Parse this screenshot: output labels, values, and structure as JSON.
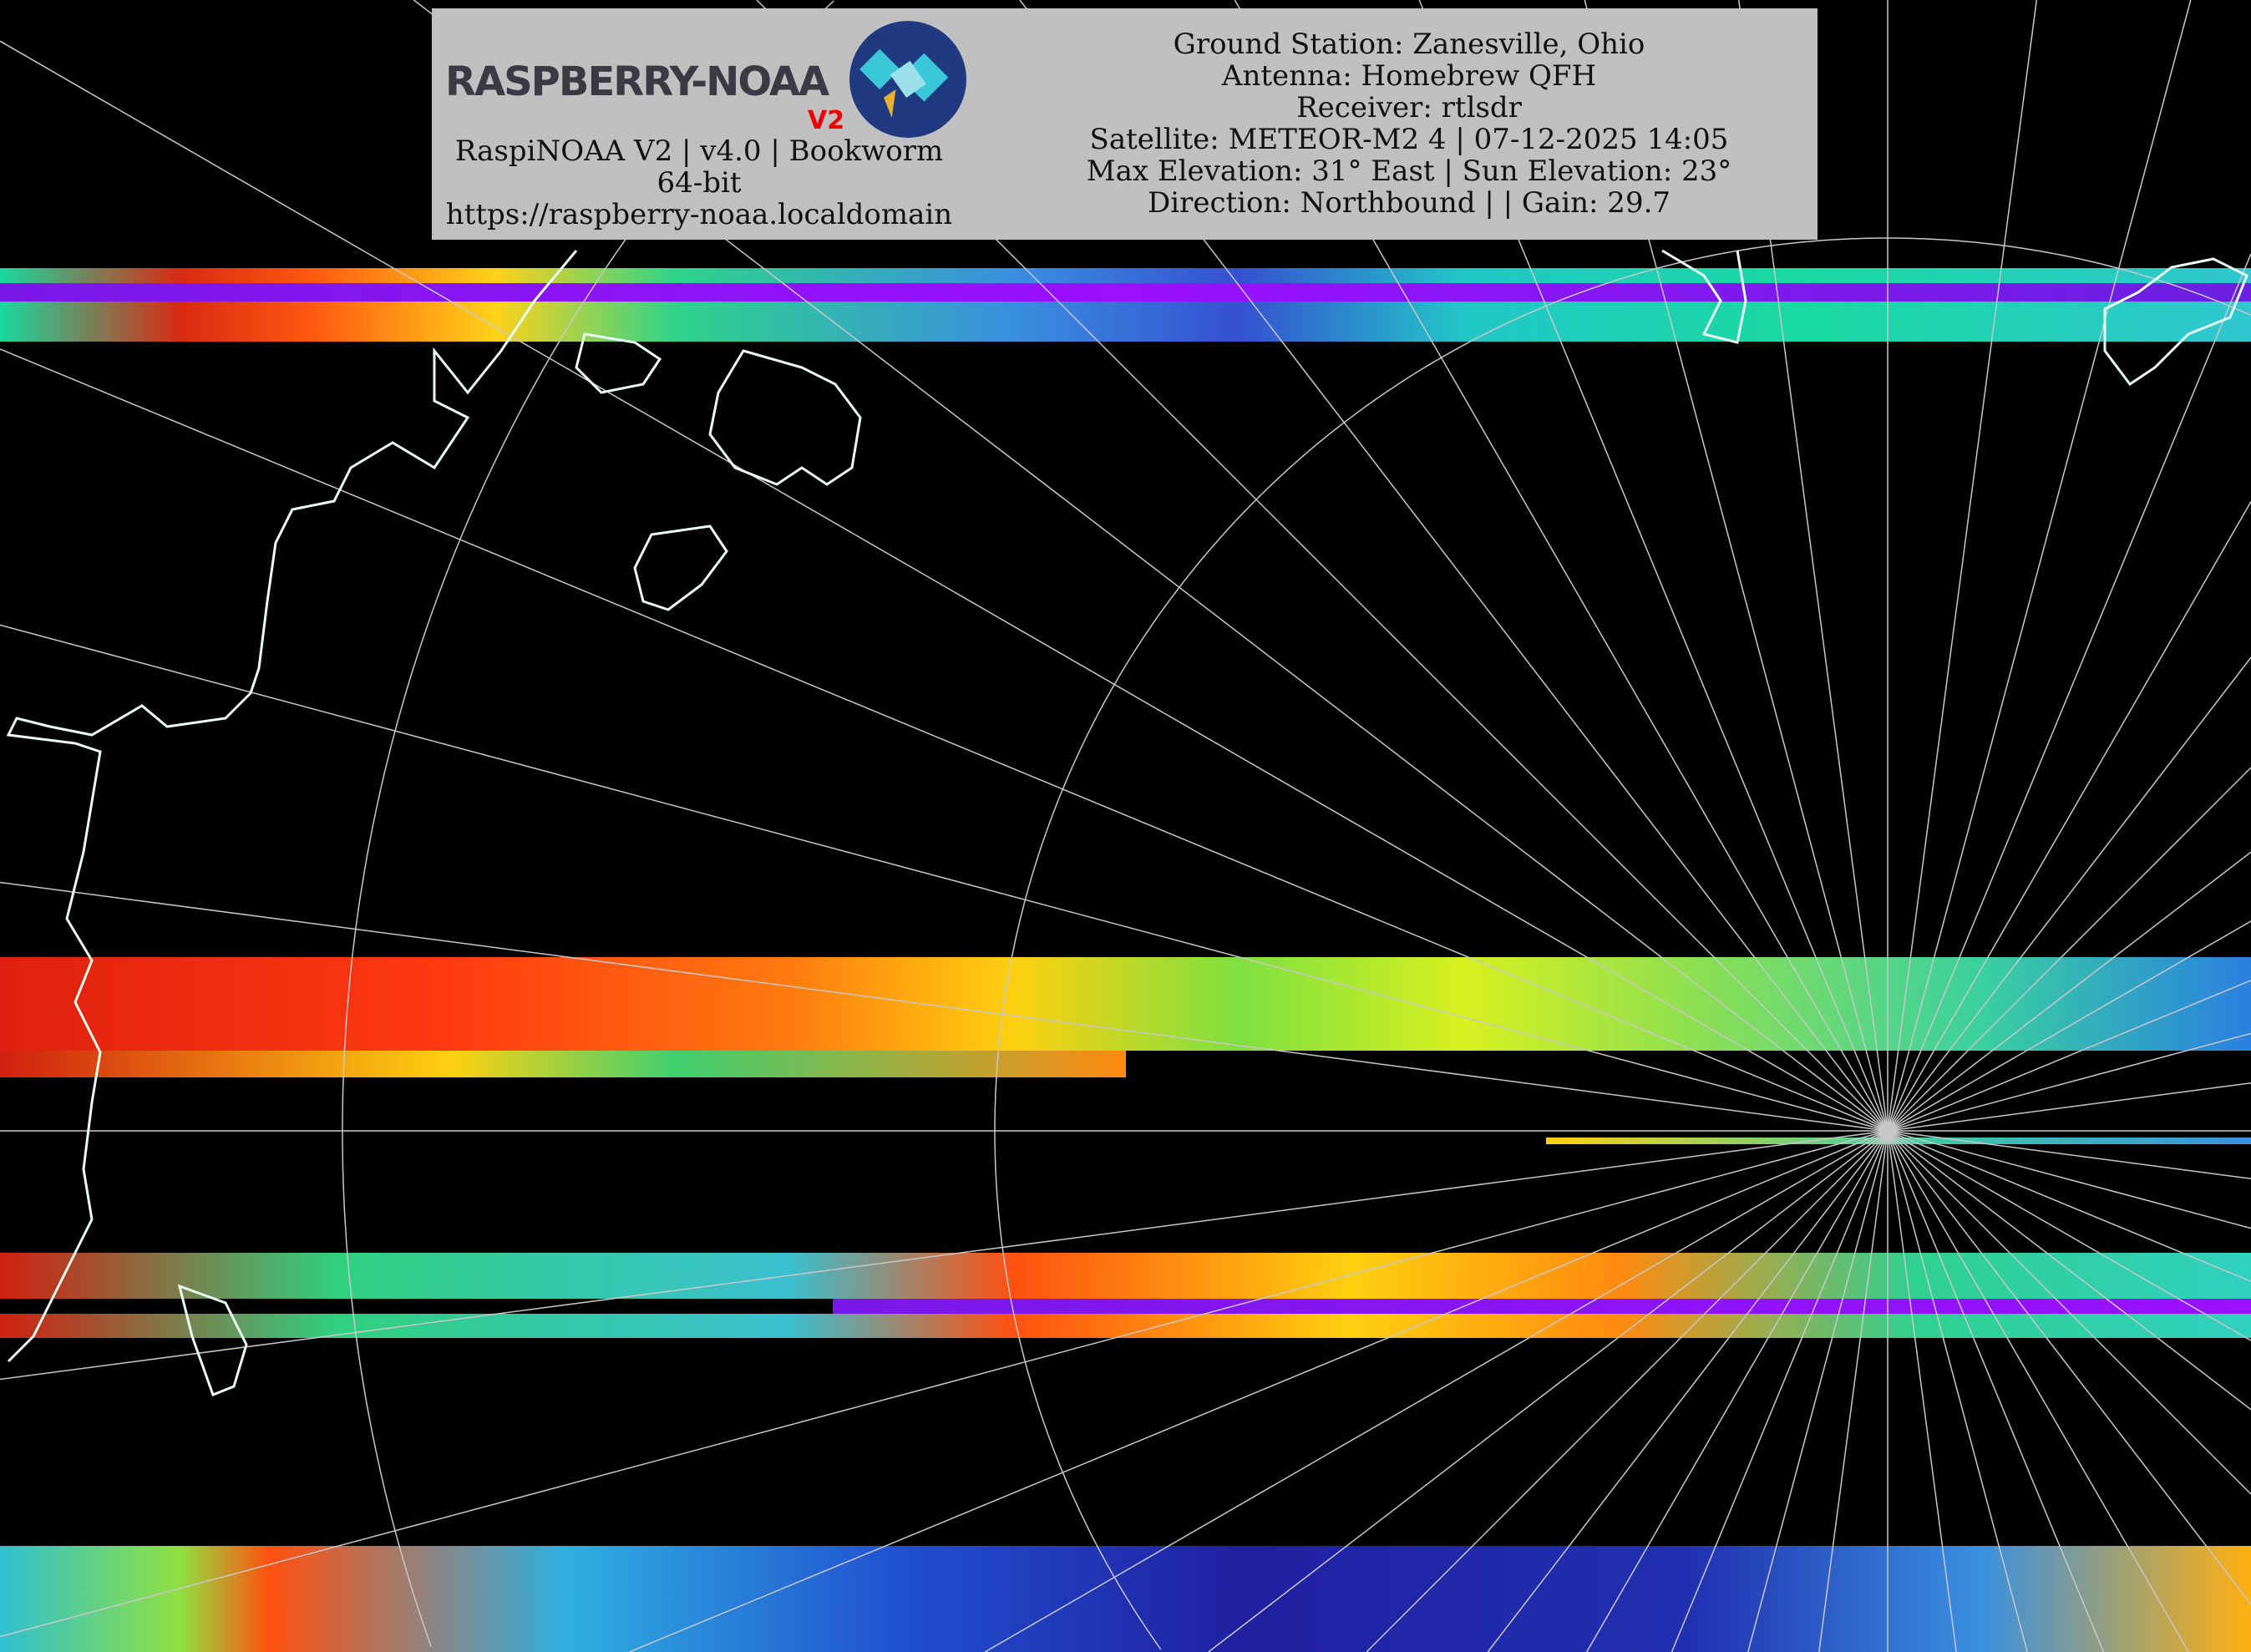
{
  "header": {
    "logo_text": "RASPBERRY-NOAA",
    "logo_badge": "V2",
    "software_line": "RaspiNOAA V2 | v4.0 | Bookworm 64-bit",
    "url": "https://raspberry-noaa.localdomain",
    "ground_station": "Ground Station: Zanesville, Ohio",
    "antenna": "Antenna: Homebrew QFH",
    "receiver": "Receiver: rtlsdr",
    "satellite": "Satellite: METEOR-M2 4 | 07-12-2025 14:05",
    "elevation": "Max Elevation: 31° East | Sun Elevation: 23°",
    "direction": "Direction: Northbound | | Gain: 29.7"
  },
  "colors": {
    "header_bg": "#c0c0c0",
    "coastline": "#e8fff4",
    "grid": "#c8c8c8"
  },
  "map": {
    "projection": "polar",
    "overlays": [
      "coastlines",
      "lat-lon-grid"
    ]
  }
}
